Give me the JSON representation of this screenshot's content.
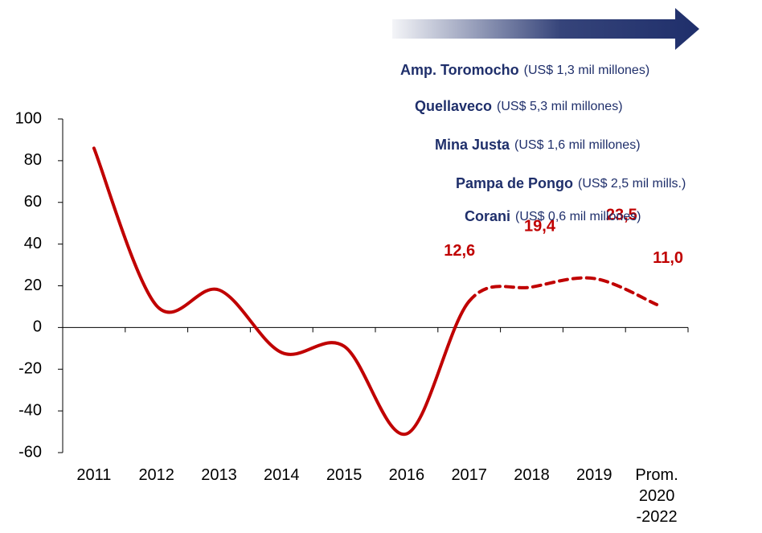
{
  "chart_data": {
    "type": "line",
    "categories": [
      "2011",
      "2012",
      "2013",
      "2014",
      "2015",
      "2016",
      "2017",
      "2018",
      "2019",
      "Prom.\n2020\n-2022"
    ],
    "series": [
      {
        "color": "#c00000",
        "values": [
          86,
          10.5,
          18,
          -12,
          -9,
          -51,
          12.6,
          19.4,
          23.5,
          11.0
        ],
        "value_labels": [
          null,
          null,
          null,
          null,
          null,
          null,
          "12,6",
          "19,4",
          "23,5",
          "11,0"
        ]
      }
    ],
    "projected_from": 6,
    "ylim": [
      -60,
      100
    ],
    "yticks": [
      -60,
      -40,
      -20,
      0,
      20,
      40,
      60,
      80,
      100
    ],
    "annotations": [
      {
        "name": "Amp. Toromocho",
        "detail": "(US$ 1,3  mil millones)"
      },
      {
        "name": "Quellaveco",
        "detail": "(US$ 5,3 mil millones)"
      },
      {
        "name": "Mina Justa",
        "detail": "(US$ 1,6 mil millones)"
      },
      {
        "name": "Pampa de Pongo",
        "detail": "(US$ 2,5 mil mills.)"
      },
      {
        "name": "Corani",
        "detail": "(US$ 0,6 mil millones)"
      }
    ]
  }
}
